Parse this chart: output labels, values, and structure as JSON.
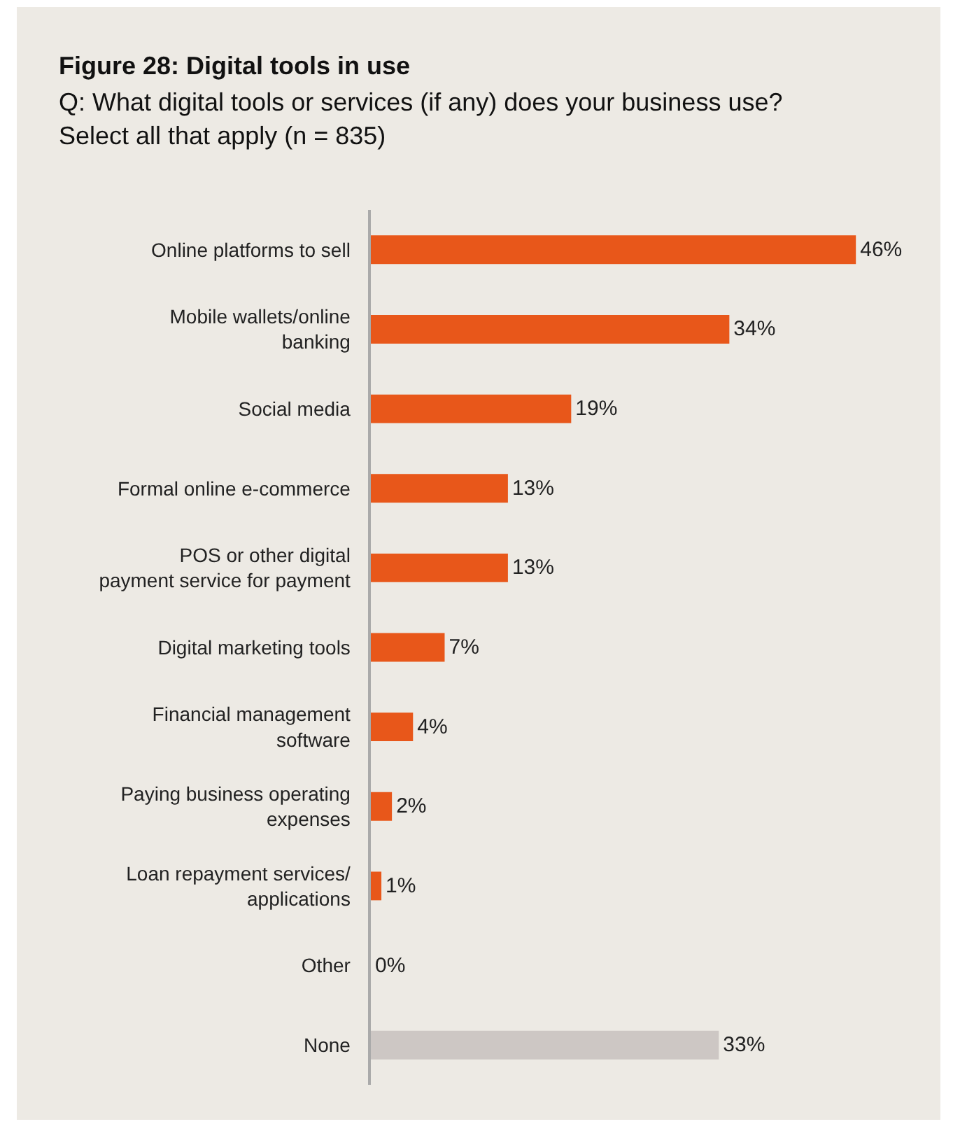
{
  "chart_data": {
    "type": "bar",
    "orientation": "horizontal",
    "title": "Figure 28: Digital tools in use",
    "subtitle": "Q: What digital tools or services (if any) does your business use? Select all that apply (n = 835)",
    "categories": [
      "Online platforms to sell",
      "Mobile wallets/online banking",
      "Social media",
      "Formal online e-commerce",
      "POS or other digital payment service for payment",
      "Digital marketing tools",
      "Financial management software",
      "Paying business operating expenses",
      "Loan repayment services/ applications",
      "Other",
      "None"
    ],
    "values": [
      46,
      34,
      19,
      13,
      13,
      7,
      4,
      2,
      1,
      0,
      33
    ],
    "value_labels": [
      "46%",
      "34%",
      "19%",
      "13%",
      "13%",
      "7%",
      "4%",
      "2%",
      "1%",
      "0%",
      "33%"
    ],
    "colors": [
      "#e8571a",
      "#e8571a",
      "#e8571a",
      "#e8571a",
      "#e8571a",
      "#e8571a",
      "#e8571a",
      "#e8571a",
      "#e8571a",
      "#e8571a",
      "#cdc7c4"
    ],
    "grid": false,
    "legend": false
  }
}
